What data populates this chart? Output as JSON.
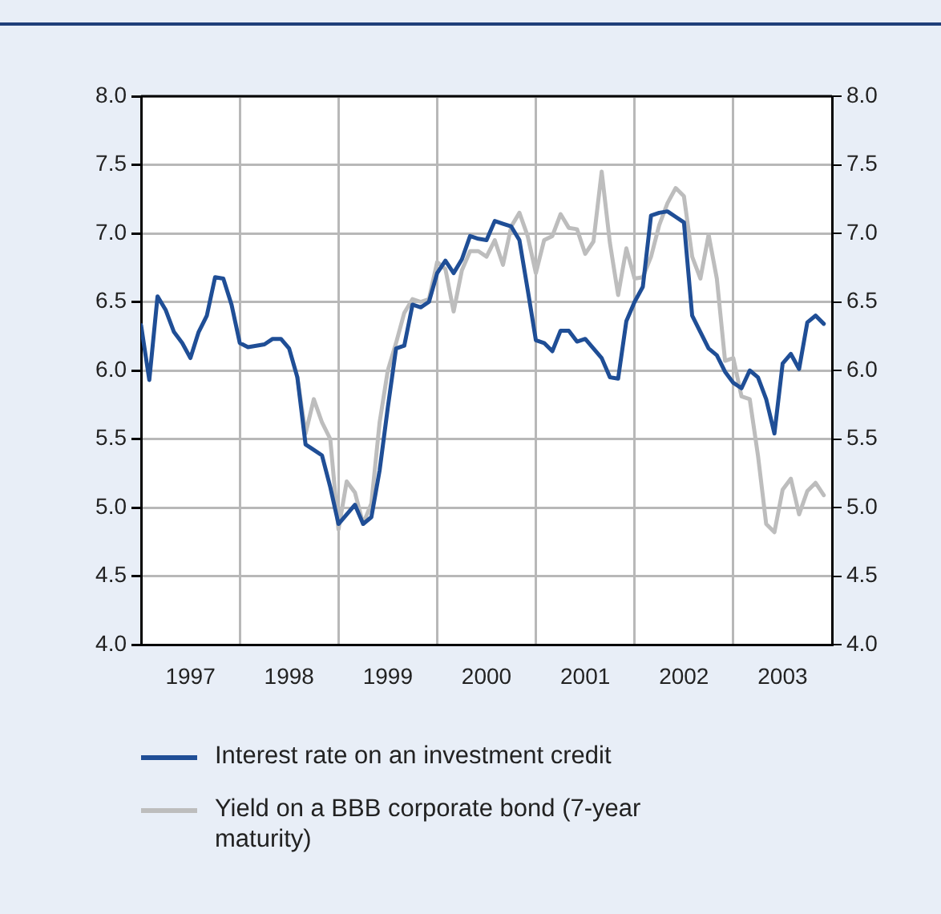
{
  "chart_data": {
    "type": "line",
    "x": [
      "1997-01",
      "1997-02",
      "1997-03",
      "1997-04",
      "1997-05",
      "1997-06",
      "1997-07",
      "1997-08",
      "1997-09",
      "1997-10",
      "1997-11",
      "1997-12",
      "1998-01",
      "1998-02",
      "1998-03",
      "1998-04",
      "1998-05",
      "1998-06",
      "1998-07",
      "1998-08",
      "1998-09",
      "1998-10",
      "1998-11",
      "1998-12",
      "1999-01",
      "1999-02",
      "1999-03",
      "1999-04",
      "1999-05",
      "1999-06",
      "1999-07",
      "1999-08",
      "1999-09",
      "1999-10",
      "1999-11",
      "1999-12",
      "2000-01",
      "2000-02",
      "2000-03",
      "2000-04",
      "2000-05",
      "2000-06",
      "2000-07",
      "2000-08",
      "2000-09",
      "2000-10",
      "2000-11",
      "2000-12",
      "2001-01",
      "2001-02",
      "2001-03",
      "2001-04",
      "2001-05",
      "2001-06",
      "2001-07",
      "2001-08",
      "2001-09",
      "2001-10",
      "2001-11",
      "2001-12",
      "2002-01",
      "2002-02",
      "2002-03",
      "2002-04",
      "2002-05",
      "2002-06",
      "2002-07",
      "2002-08",
      "2002-09",
      "2002-10",
      "2002-11",
      "2002-12",
      "2003-01",
      "2003-02",
      "2003-03",
      "2003-04",
      "2003-05",
      "2003-06",
      "2003-07",
      "2003-08",
      "2003-09",
      "2003-10",
      "2003-11",
      "2003-12"
    ],
    "series": [
      {
        "name": "Interest rate on an investment credit",
        "color": "#1f4e96",
        "values": [
          6.33,
          5.93,
          6.54,
          6.44,
          6.28,
          6.2,
          6.09,
          6.28,
          6.4,
          6.68,
          6.67,
          6.48,
          6.2,
          6.17,
          6.18,
          6.19,
          6.23,
          6.23,
          6.16,
          5.95,
          5.46,
          5.42,
          5.38,
          5.15,
          4.88,
          4.95,
          5.02,
          4.88,
          4.93,
          5.27,
          5.73,
          6.16,
          6.18,
          6.48,
          6.46,
          6.5,
          6.71,
          6.8,
          6.71,
          6.81,
          6.98,
          6.96,
          6.95,
          7.09,
          7.07,
          7.05,
          6.95,
          6.59,
          6.22,
          6.2,
          6.14,
          6.29,
          6.29,
          6.21,
          6.23,
          6.16,
          6.09,
          5.95,
          5.94,
          6.36,
          6.5,
          6.61,
          7.13,
          7.15,
          7.16,
          7.12,
          7.08,
          6.4,
          6.28,
          6.16,
          6.11,
          5.99,
          5.91,
          5.87,
          6.0,
          5.95,
          5.79,
          5.54,
          6.05,
          6.12,
          6.01,
          6.35,
          6.4,
          6.34
        ]
      },
      {
        "name": "Yield on a BBB corporate bond (7-year maturity)",
        "color": "#bdbdbd",
        "values": [
          null,
          null,
          null,
          null,
          null,
          null,
          null,
          null,
          null,
          null,
          null,
          null,
          null,
          null,
          null,
          null,
          null,
          null,
          null,
          5.95,
          5.54,
          5.79,
          5.62,
          5.5,
          4.84,
          5.19,
          5.11,
          4.88,
          5.03,
          5.62,
          6.0,
          6.2,
          6.42,
          6.52,
          6.5,
          6.52,
          6.79,
          6.74,
          6.43,
          6.73,
          6.87,
          6.87,
          6.83,
          6.95,
          6.77,
          7.05,
          7.15,
          6.98,
          6.71,
          6.95,
          6.98,
          7.14,
          7.04,
          7.03,
          6.85,
          6.94,
          7.45,
          6.93,
          6.55,
          6.89,
          6.67,
          6.68,
          6.83,
          7.06,
          7.22,
          7.33,
          7.27,
          6.83,
          6.67,
          6.99,
          6.67,
          6.07,
          6.09,
          5.81,
          5.79,
          5.38,
          4.88,
          4.82,
          5.13,
          5.21,
          4.95,
          5.12,
          5.18,
          5.09
        ]
      }
    ],
    "xlim": [
      "1997-01",
      "2004-01"
    ],
    "xticks": [
      {
        "value": "1997-07",
        "label": "1997"
      },
      {
        "value": "1998-01",
        "label": null
      },
      {
        "value": "1998-07",
        "label": "1998"
      },
      {
        "value": "1999-01",
        "label": null
      },
      {
        "value": "1999-07",
        "label": "1999"
      },
      {
        "value": "2000-01",
        "label": null
      },
      {
        "value": "2000-07",
        "label": "2000"
      },
      {
        "value": "2001-01",
        "label": null
      },
      {
        "value": "2001-07",
        "label": "2001"
      },
      {
        "value": "2002-01",
        "label": null
      },
      {
        "value": "2002-07",
        "label": "2002"
      },
      {
        "value": "2003-01",
        "label": null
      },
      {
        "value": "2003-07",
        "label": "2003"
      }
    ],
    "ylim": [
      4.0,
      8.0
    ],
    "yticks": [
      {
        "value": 4,
        "label": "4.0"
      },
      {
        "value": 4.5,
        "label": "4.5"
      },
      {
        "value": 5,
        "label": "5.0"
      },
      {
        "value": 5.5,
        "label": "5.5"
      },
      {
        "value": 6,
        "label": "6.0"
      },
      {
        "value": 6.5,
        "label": "6.5"
      },
      {
        "value": 7,
        "label": "7.0"
      },
      {
        "value": 7.5,
        "label": "7.5"
      },
      {
        "value": 8,
        "label": "8.0"
      }
    ],
    "y2lim": [
      4.0,
      8.0
    ],
    "y2ticks": [
      {
        "value": 4,
        "label": "4.0"
      },
      {
        "value": 4.5,
        "label": "4.5"
      },
      {
        "value": 5,
        "label": "5.0"
      },
      {
        "value": 5.5,
        "label": "5.5"
      },
      {
        "value": 6,
        "label": "6.0"
      },
      {
        "value": 6.5,
        "label": "6.5"
      },
      {
        "value": 7,
        "label": "7.0"
      },
      {
        "value": 7.5,
        "label": "7.5"
      },
      {
        "value": 8,
        "label": "8.0"
      }
    ],
    "grid": true,
    "legend": "bottom"
  }
}
